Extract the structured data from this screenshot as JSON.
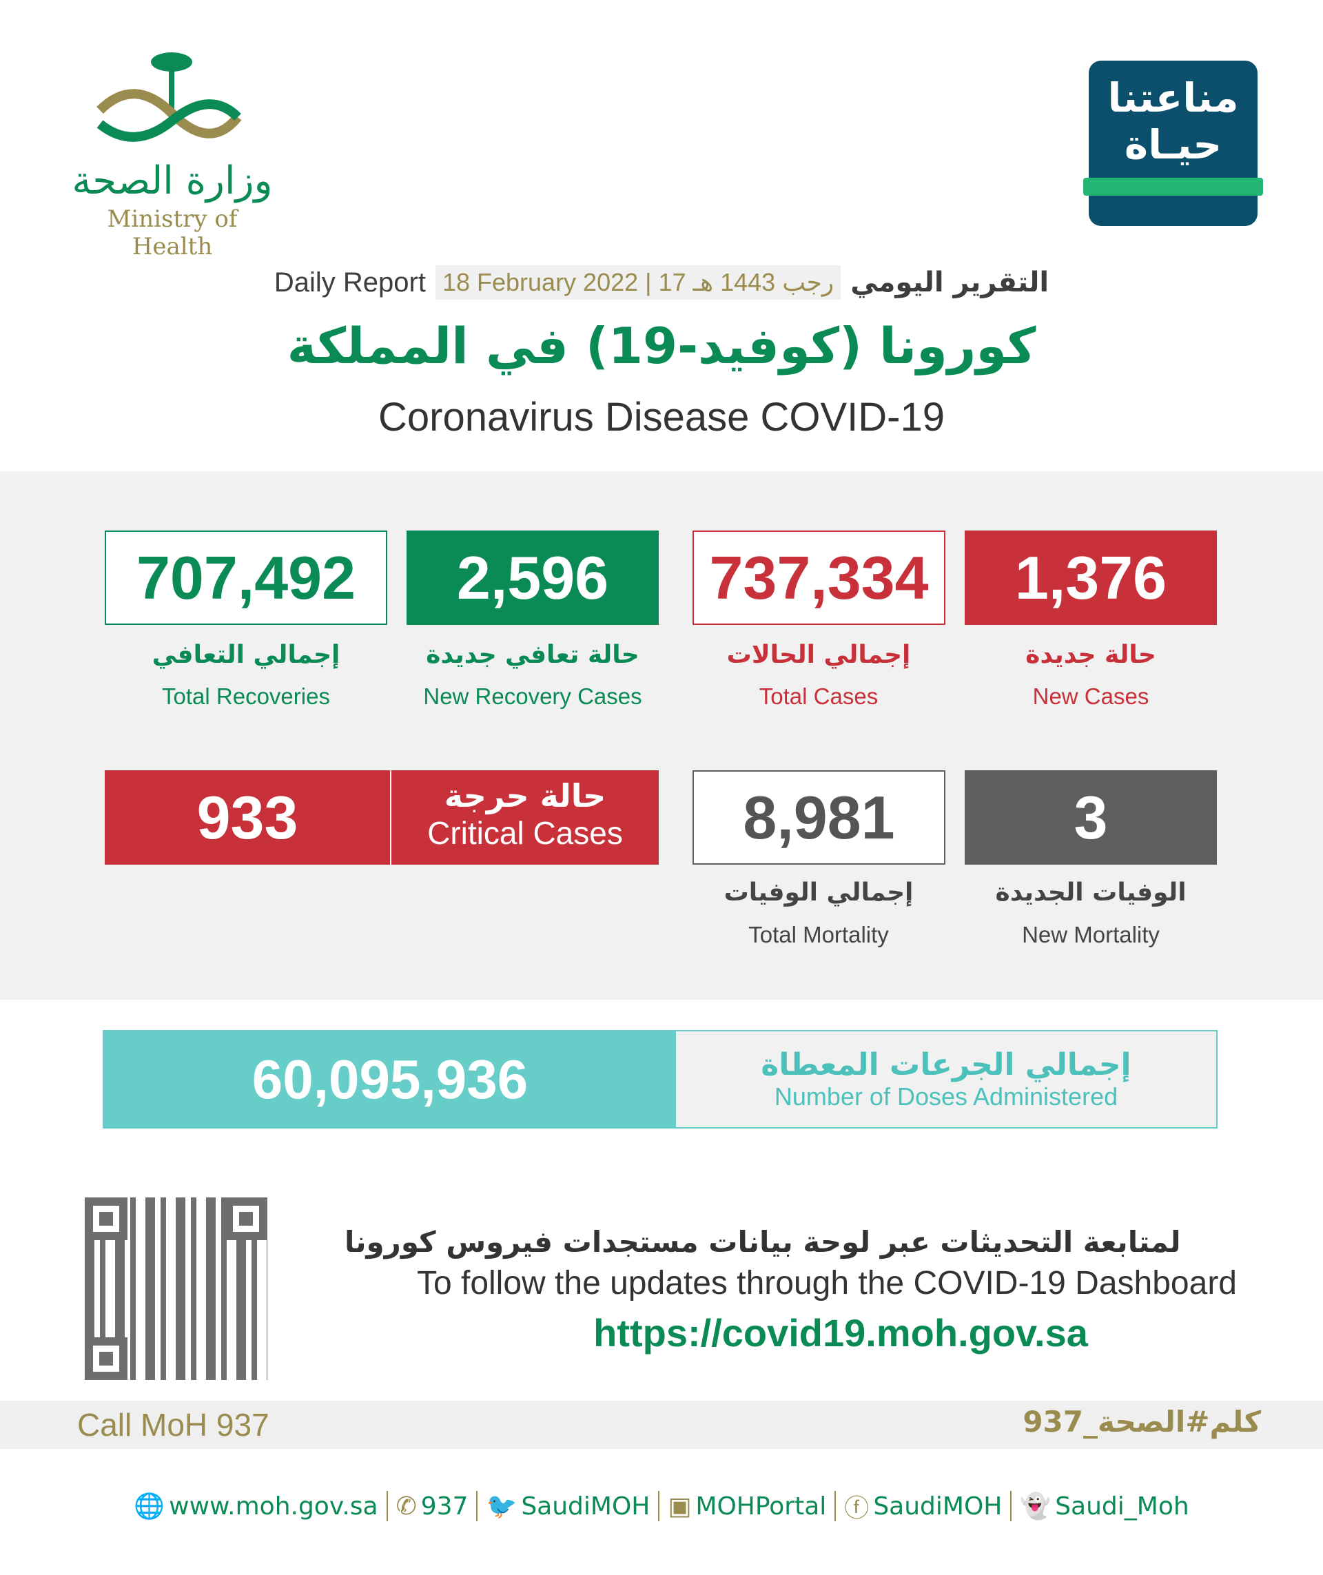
{
  "logos": {
    "moh_ar": "وزارة الصحة",
    "moh_en": "Ministry of Health",
    "campaign_ar_line1": "مناعتنا",
    "campaign_ar_line2": "حيـاة"
  },
  "header": {
    "daily_report_en": "Daily Report",
    "date_gregorian": "18 February 2022",
    "date_hijri": "17 رجب 1443 هـ",
    "daily_report_ar": "التقرير اليومي",
    "title_ar": "كورونا (كوفيد-19) في المملكة",
    "title_en": "Coronavirus Disease COVID-19"
  },
  "stats": {
    "new_cases": {
      "value": "1,376",
      "ar": "حالة جديدة",
      "en": "New Cases"
    },
    "total_cases": {
      "value": "737,334",
      "ar": "إجمالي الحالات",
      "en": "Total Cases"
    },
    "new_recoveries": {
      "value": "2,596",
      "ar": "حالة تعافي جديدة",
      "en": "New Recovery Cases"
    },
    "total_recoveries": {
      "value": "707,492",
      "ar": "إجمالي التعافي",
      "en": "Total Recoveries"
    },
    "new_mortality": {
      "value": "3",
      "ar": "الوفيات الجديدة",
      "en": "New Mortality"
    },
    "total_mortality": {
      "value": "8,981",
      "ar": "إجمالي الوفيات",
      "en": "Total Mortality"
    },
    "critical": {
      "value": "933",
      "ar": "حالة حرجة",
      "en": "Critical Cases"
    }
  },
  "doses": {
    "value": "60,095,936",
    "ar": "إجمالي الجرعات المعطاة",
    "en": "Number of Doses Administered"
  },
  "dashboard": {
    "ar": "لمتابعة التحديثات عبر لوحة بيانات مستجدات فيروس كورونا",
    "en": "To follow the updates through the COVID-19 Dashboard",
    "url": "https://covid19.moh.gov.sa"
  },
  "call": {
    "en": "Call MoH 937",
    "ar": "كلم#الصحة_937"
  },
  "footer": [
    {
      "icon": "globe-icon",
      "label": "www.moh.gov.sa"
    },
    {
      "icon": "phone-icon",
      "label": "937"
    },
    {
      "icon": "twitter-icon",
      "label": "SaudiMOH"
    },
    {
      "icon": "youtube-icon",
      "label": "MOHPortal"
    },
    {
      "icon": "facebook-icon",
      "label": "SaudiMOH"
    },
    {
      "icon": "snapchat-icon",
      "label": "Saudi_Moh"
    }
  ],
  "colors": {
    "green": "#0a8a55",
    "red": "#c8313a",
    "gray": "#5f5f5f",
    "teal": "#66cdc9",
    "gold": "#9a8c4e"
  }
}
